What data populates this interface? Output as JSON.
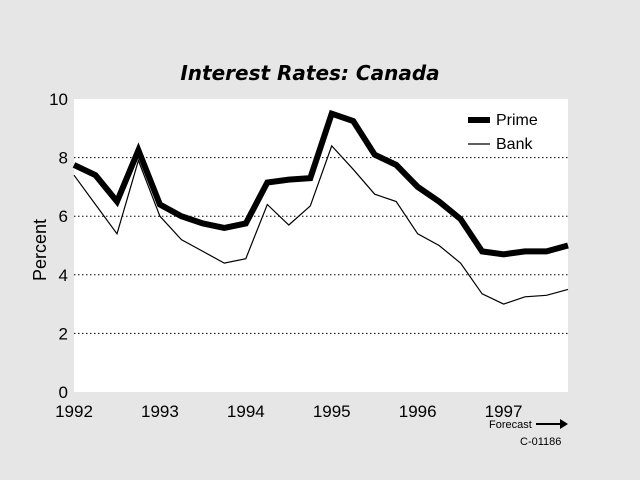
{
  "chart_data": {
    "type": "line",
    "title": "Interest Rates: Canada",
    "ylabel": "Percent",
    "xlabel": "",
    "ylim": [
      0,
      10
    ],
    "xlim": [
      1992,
      1997.75
    ],
    "yticks": [
      0,
      2,
      4,
      6,
      8,
      10
    ],
    "xticks": [
      1992,
      1993,
      1994,
      1995,
      1996,
      1997
    ],
    "grid": "horizontal-dotted",
    "legend_position": "top-right",
    "series": [
      {
        "name": "Prime",
        "color": "#000000",
        "x": [
          1992.0,
          1992.25,
          1992.5,
          1992.75,
          1993.0,
          1993.25,
          1993.5,
          1993.75,
          1994.0,
          1994.25,
          1994.5,
          1994.75,
          1995.0,
          1995.25,
          1995.5,
          1995.75,
          1996.0,
          1996.25,
          1996.5,
          1996.75,
          1997.0,
          1997.25,
          1997.5,
          1997.75
        ],
        "values": [
          7.75,
          7.4,
          6.5,
          8.25,
          6.4,
          6.0,
          5.75,
          5.6,
          5.75,
          7.15,
          7.25,
          7.3,
          9.5,
          9.25,
          8.1,
          7.75,
          7.0,
          6.5,
          5.9,
          4.8,
          4.7,
          4.8,
          4.8,
          5.0
        ]
      },
      {
        "name": "Bank",
        "color": "#000000",
        "x": [
          1992.0,
          1992.25,
          1992.5,
          1992.75,
          1993.0,
          1993.25,
          1993.5,
          1993.75,
          1994.0,
          1994.25,
          1994.5,
          1994.75,
          1995.0,
          1995.25,
          1995.5,
          1995.75,
          1996.0,
          1996.25,
          1996.5,
          1996.75,
          1997.0,
          1997.25,
          1997.5,
          1997.75
        ],
        "values": [
          7.4,
          6.4,
          5.4,
          7.9,
          6.0,
          5.2,
          4.8,
          4.4,
          4.55,
          6.4,
          5.7,
          6.35,
          8.4,
          7.6,
          6.75,
          6.5,
          5.4,
          5.0,
          4.4,
          3.35,
          3.0,
          3.25,
          3.3,
          3.5
        ]
      }
    ],
    "annotations": {
      "forecast": "Forecast",
      "code": "C-01186"
    }
  }
}
